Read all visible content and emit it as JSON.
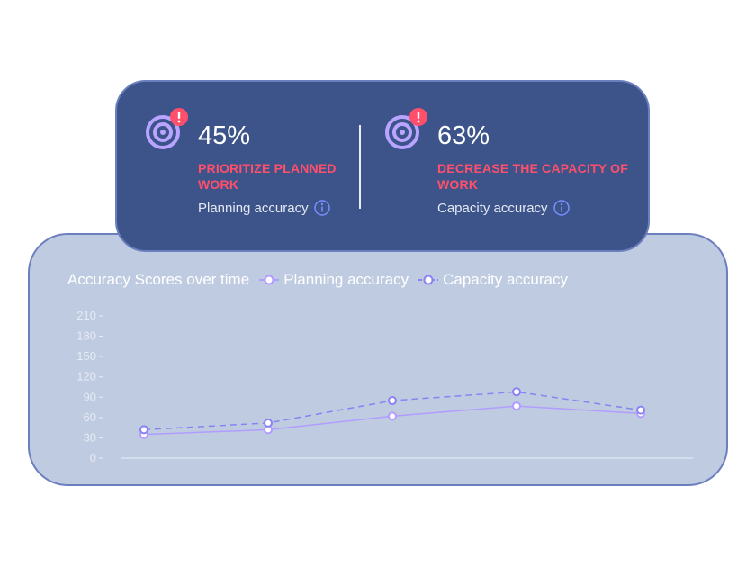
{
  "kpis": [
    {
      "value": "45%",
      "alert": "PRIORITIZE PLANNED WORK",
      "label": "Planning accuracy",
      "target_icon": "target-icon",
      "alert_icon": "alert-icon",
      "info_icon": "info-icon"
    },
    {
      "value": "63%",
      "alert": "DECREASE THE CAPACITY OF WORK",
      "label": "Capacity accuracy",
      "target_icon": "target-icon",
      "alert_icon": "alert-icon",
      "info_icon": "info-icon"
    }
  ],
  "colors": {
    "kpi_card_bg": "#3d548b",
    "chart_card_bg": "#bfcbe0",
    "alert": "#ff4f6b",
    "target_icon": "#b9a5ff",
    "info_icon": "#7a8fff",
    "planning_series": "#b19cff",
    "capacity_series": "#8a82f2"
  },
  "chart_data": {
    "type": "line",
    "title": "Accuracy Scores over time",
    "xlabel": "",
    "ylabel": "",
    "ylim": [
      0,
      210
    ],
    "yticks": [
      0,
      30,
      60,
      90,
      120,
      150,
      180,
      210
    ],
    "x": [
      1,
      2,
      3,
      4,
      5
    ],
    "grid": false,
    "legend": "top",
    "series": [
      {
        "name": "Planning accuracy",
        "values": [
          35,
          42,
          62,
          77,
          66
        ],
        "style": "solid"
      },
      {
        "name": "Capacity accuracy",
        "values": [
          42,
          52,
          85,
          98,
          71
        ],
        "style": "dashed"
      }
    ]
  }
}
